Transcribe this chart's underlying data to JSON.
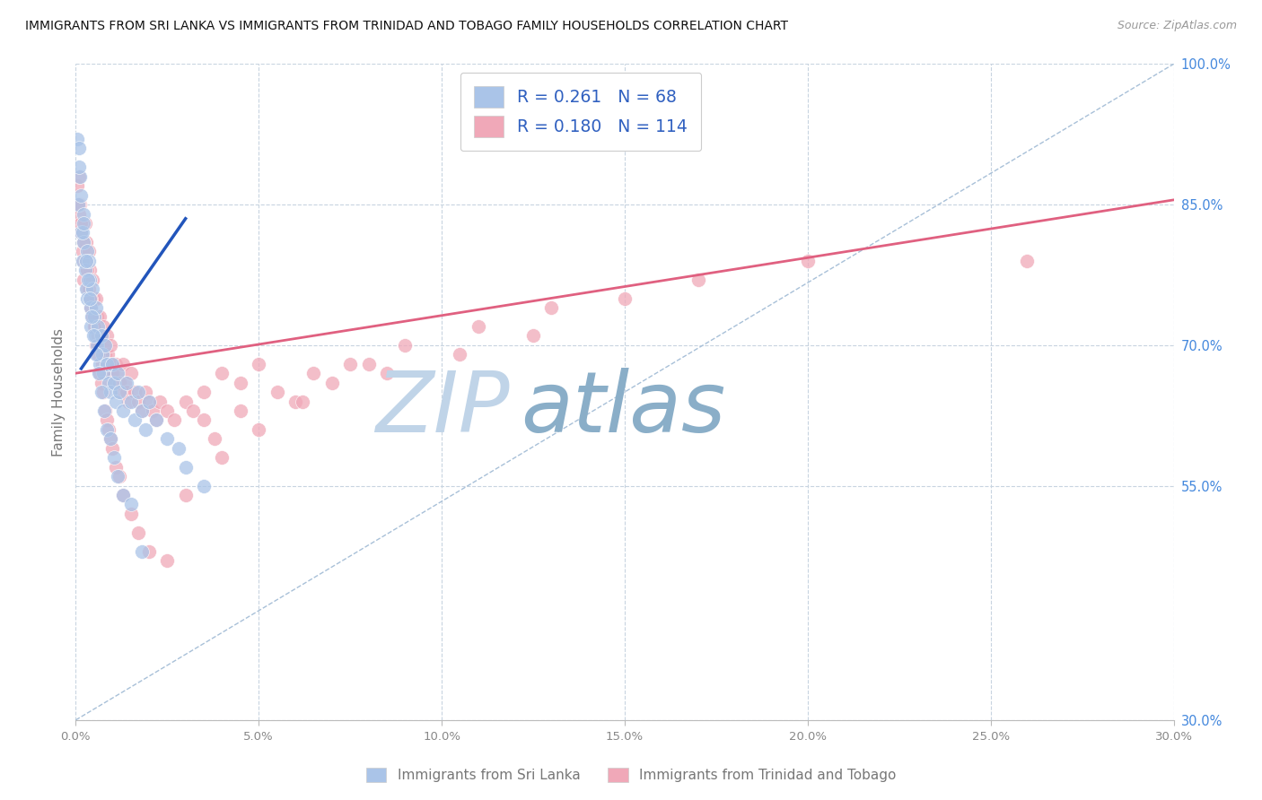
{
  "title": "IMMIGRANTS FROM SRI LANKA VS IMMIGRANTS FROM TRINIDAD AND TOBAGO FAMILY HOUSEHOLDS CORRELATION CHART",
  "source": "Source: ZipAtlas.com",
  "ylabel": "Family Households",
  "x_tick_vals": [
    0.0,
    5.0,
    10.0,
    15.0,
    20.0,
    25.0,
    30.0
  ],
  "y_tick_vals": [
    30.0,
    55.0,
    70.0,
    85.0,
    100.0
  ],
  "xlim": [
    0.0,
    30.0
  ],
  "ylim": [
    30.0,
    100.0
  ],
  "legend_text_color": "#3060c0",
  "sri_lanka_color": "#aac4e8",
  "trinidad_color": "#f0a8b8",
  "sri_lanka_line_color": "#2255bb",
  "trinidad_line_color": "#e06080",
  "ref_line_color": "#a8c0d8",
  "watermark_zip": "ZIP",
  "watermark_atlas": "atlas",
  "watermark_zip_color": "#c0d4e8",
  "watermark_atlas_color": "#8aaec8",
  "footer_label1": "Immigrants from Sri Lanka",
  "footer_label2": "Immigrants from Trinidad and Tobago",
  "background_color": "#ffffff",
  "sri_lanka_trend_x": [
    0.15,
    3.0
  ],
  "sri_lanka_trend_y": [
    67.5,
    83.5
  ],
  "trinidad_trend_x": [
    0.0,
    30.0
  ],
  "trinidad_trend_y": [
    67.0,
    85.5
  ],
  "ref_line_x": [
    0.0,
    30.0
  ],
  "ref_line_y": [
    30.0,
    100.0
  ],
  "sri_lanka_x": [
    0.05,
    0.07,
    0.1,
    0.12,
    0.15,
    0.18,
    0.2,
    0.22,
    0.25,
    0.28,
    0.3,
    0.32,
    0.35,
    0.38,
    0.4,
    0.42,
    0.45,
    0.5,
    0.52,
    0.55,
    0.58,
    0.6,
    0.65,
    0.7,
    0.72,
    0.75,
    0.8,
    0.85,
    0.9,
    0.95,
    1.0,
    1.05,
    1.1,
    1.15,
    1.2,
    1.3,
    1.4,
    1.5,
    1.6,
    1.7,
    1.8,
    1.9,
    2.0,
    2.2,
    2.5,
    2.8,
    3.0,
    3.5,
    0.08,
    0.13,
    0.18,
    0.22,
    0.28,
    0.33,
    0.38,
    0.43,
    0.48,
    0.55,
    0.62,
    0.7,
    0.78,
    0.85,
    0.95,
    1.05,
    1.15,
    1.3,
    1.5,
    1.8
  ],
  "sri_lanka_y": [
    92.0,
    85.0,
    91.0,
    88.0,
    82.0,
    79.0,
    84.0,
    81.0,
    78.0,
    76.0,
    80.0,
    75.0,
    79.0,
    77.0,
    74.0,
    72.0,
    76.0,
    73.0,
    71.0,
    74.0,
    70.0,
    72.0,
    68.0,
    71.0,
    69.0,
    67.0,
    70.0,
    68.0,
    66.0,
    65.0,
    68.0,
    66.0,
    64.0,
    67.0,
    65.0,
    63.0,
    66.0,
    64.0,
    62.0,
    65.0,
    63.0,
    61.0,
    64.0,
    62.0,
    60.0,
    59.0,
    57.0,
    55.0,
    89.0,
    86.0,
    82.0,
    83.0,
    79.0,
    77.0,
    75.0,
    73.0,
    71.0,
    69.0,
    67.0,
    65.0,
    63.0,
    61.0,
    60.0,
    58.0,
    56.0,
    54.0,
    53.0,
    48.0
  ],
  "trinidad_x": [
    0.05,
    0.08,
    0.1,
    0.12,
    0.15,
    0.18,
    0.2,
    0.22,
    0.25,
    0.28,
    0.3,
    0.32,
    0.35,
    0.38,
    0.4,
    0.42,
    0.45,
    0.48,
    0.5,
    0.52,
    0.55,
    0.58,
    0.6,
    0.62,
    0.65,
    0.68,
    0.7,
    0.72,
    0.75,
    0.78,
    0.8,
    0.82,
    0.85,
    0.88,
    0.9,
    0.92,
    0.95,
    0.98,
    1.0,
    1.05,
    1.1,
    1.15,
    1.2,
    1.25,
    1.3,
    1.35,
    1.4,
    1.45,
    1.5,
    1.6,
    1.7,
    1.8,
    1.9,
    2.0,
    2.1,
    2.2,
    2.3,
    2.5,
    2.7,
    3.0,
    3.2,
    3.5,
    4.0,
    4.5,
    5.0,
    0.1,
    0.15,
    0.2,
    0.25,
    0.3,
    0.35,
    0.4,
    0.45,
    0.5,
    0.55,
    0.6,
    0.65,
    0.7,
    0.75,
    0.8,
    0.85,
    0.9,
    0.95,
    1.0,
    1.1,
    1.2,
    1.3,
    1.5,
    1.7,
    2.0,
    2.5,
    3.0,
    4.0,
    5.0,
    6.0,
    7.0,
    8.0,
    3.5,
    4.5,
    5.5,
    6.5,
    7.5,
    9.0,
    11.0,
    13.0,
    15.0,
    17.0,
    20.0,
    26.0,
    3.8,
    6.2,
    8.5,
    10.5,
    12.5
  ],
  "trinidad_y": [
    87.0,
    84.0,
    88.0,
    85.0,
    82.0,
    80.0,
    79.0,
    77.0,
    83.0,
    81.0,
    78.0,
    76.0,
    80.0,
    78.0,
    75.0,
    74.0,
    77.0,
    75.0,
    73.0,
    72.0,
    75.0,
    73.0,
    71.0,
    70.0,
    73.0,
    71.0,
    70.0,
    68.0,
    72.0,
    70.0,
    69.0,
    68.0,
    71.0,
    69.0,
    68.0,
    67.0,
    70.0,
    68.0,
    67.0,
    66.0,
    68.0,
    67.0,
    66.0,
    65.0,
    68.0,
    66.0,
    65.0,
    64.0,
    67.0,
    65.0,
    64.0,
    63.0,
    65.0,
    64.0,
    63.0,
    62.0,
    64.0,
    63.0,
    62.0,
    64.0,
    63.0,
    65.0,
    67.0,
    66.0,
    68.0,
    85.0,
    83.0,
    81.0,
    79.0,
    78.0,
    76.0,
    75.0,
    73.0,
    72.0,
    70.0,
    69.0,
    67.0,
    66.0,
    65.0,
    63.0,
    62.0,
    61.0,
    60.0,
    59.0,
    57.0,
    56.0,
    54.0,
    52.0,
    50.0,
    48.0,
    47.0,
    54.0,
    58.0,
    61.0,
    64.0,
    66.0,
    68.0,
    62.0,
    63.0,
    65.0,
    67.0,
    68.0,
    70.0,
    72.0,
    74.0,
    75.0,
    77.0,
    79.0,
    79.0,
    60.0,
    64.0,
    67.0,
    69.0,
    71.0
  ]
}
